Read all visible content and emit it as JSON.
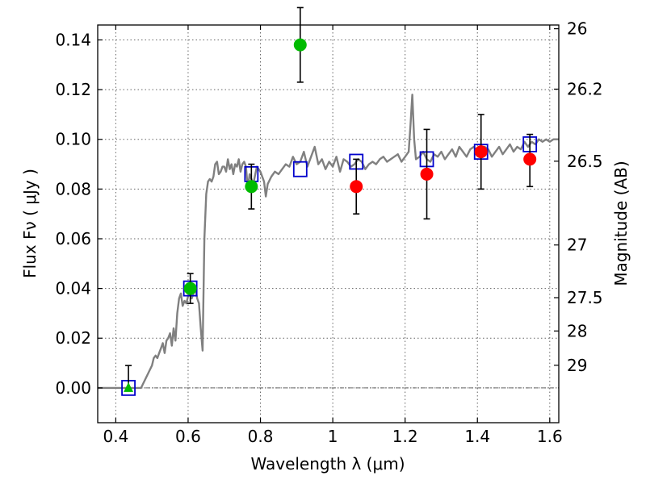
{
  "chart_data": {
    "type": "scatter",
    "xlabel": "Wavelength  λ (μm)",
    "ylabel": "Flux  Fν  ( μJy )",
    "y2label": "Magnitude (AB)",
    "xlim": [
      0.35,
      1.625
    ],
    "ylim": [
      -0.014,
      0.146
    ],
    "grid": true,
    "x_ticks": [
      0.4,
      0.6,
      0.8,
      1.0,
      1.2,
      1.4,
      1.6
    ],
    "x_tick_labels": [
      "0.4",
      "0.6",
      "0.8",
      "1",
      "1.2",
      "1.4",
      "1.6"
    ],
    "y_ticks": [
      0.0,
      0.02,
      0.04,
      0.06,
      0.08,
      0.1,
      0.12,
      0.14
    ],
    "y_tick_labels": [
      "0.00",
      "0.02",
      "0.04",
      "0.06",
      "0.08",
      "0.10",
      "0.12",
      "0.14"
    ],
    "y2_ticks": [
      {
        "label": "26",
        "flux": 0.1445
      },
      {
        "label": "26.2",
        "flux": 0.1202
      },
      {
        "label": "26.5",
        "flux": 0.0912
      },
      {
        "label": "27",
        "flux": 0.0575
      },
      {
        "label": "27.5",
        "flux": 0.0363
      },
      {
        "label": "28",
        "flux": 0.0229
      },
      {
        "label": "29",
        "flux": 0.0091
      }
    ],
    "series": [
      {
        "kind": "line",
        "color": "#808080",
        "x": [
          0.35,
          0.47,
          0.48,
          0.49,
          0.5,
          0.505,
          0.51,
          0.515,
          0.52,
          0.525,
          0.53,
          0.535,
          0.54,
          0.545,
          0.55,
          0.555,
          0.56,
          0.565,
          0.57,
          0.575,
          0.58,
          0.585,
          0.59,
          0.595,
          0.6,
          0.605,
          0.61,
          0.615,
          0.62,
          0.625,
          0.63,
          0.635,
          0.64,
          0.645,
          0.65,
          0.655,
          0.66,
          0.665,
          0.67,
          0.675,
          0.68,
          0.685,
          0.69,
          0.695,
          0.7,
          0.705,
          0.71,
          0.715,
          0.72,
          0.725,
          0.73,
          0.735,
          0.74,
          0.745,
          0.75,
          0.755,
          0.76,
          0.765,
          0.77,
          0.78,
          0.79,
          0.8,
          0.81,
          0.815,
          0.82,
          0.83,
          0.84,
          0.85,
          0.86,
          0.87,
          0.88,
          0.89,
          0.9,
          0.91,
          0.92,
          0.93,
          0.94,
          0.95,
          0.96,
          0.97,
          0.98,
          0.99,
          1.0,
          1.01,
          1.02,
          1.03,
          1.04,
          1.05,
          1.06,
          1.07,
          1.08,
          1.09,
          1.1,
          1.11,
          1.12,
          1.13,
          1.14,
          1.15,
          1.16,
          1.17,
          1.18,
          1.19,
          1.2,
          1.21,
          1.215,
          1.22,
          1.225,
          1.23,
          1.24,
          1.25,
          1.26,
          1.27,
          1.28,
          1.29,
          1.3,
          1.31,
          1.32,
          1.33,
          1.34,
          1.35,
          1.36,
          1.37,
          1.38,
          1.39,
          1.4,
          1.41,
          1.42,
          1.43,
          1.44,
          1.45,
          1.46,
          1.47,
          1.48,
          1.49,
          1.5,
          1.51,
          1.52,
          1.53,
          1.54,
          1.55,
          1.56,
          1.57,
          1.58,
          1.59,
          1.6,
          1.61,
          1.625
        ],
        "y": [
          0.0,
          0.0,
          0.003,
          0.006,
          0.009,
          0.012,
          0.013,
          0.012,
          0.014,
          0.016,
          0.018,
          0.014,
          0.019,
          0.02,
          0.022,
          0.017,
          0.024,
          0.019,
          0.03,
          0.036,
          0.038,
          0.033,
          0.035,
          0.034,
          0.037,
          0.039,
          0.036,
          0.038,
          0.04,
          0.036,
          0.034,
          0.024,
          0.015,
          0.06,
          0.078,
          0.083,
          0.084,
          0.083,
          0.085,
          0.09,
          0.091,
          0.086,
          0.087,
          0.089,
          0.089,
          0.087,
          0.092,
          0.088,
          0.09,
          0.086,
          0.09,
          0.089,
          0.092,
          0.087,
          0.09,
          0.091,
          0.089,
          0.08,
          0.086,
          0.082,
          0.089,
          0.087,
          0.083,
          0.077,
          0.082,
          0.085,
          0.087,
          0.086,
          0.088,
          0.09,
          0.089,
          0.093,
          0.09,
          0.091,
          0.095,
          0.089,
          0.093,
          0.097,
          0.09,
          0.092,
          0.088,
          0.091,
          0.089,
          0.093,
          0.087,
          0.092,
          0.091,
          0.089,
          0.09,
          0.092,
          0.091,
          0.088,
          0.09,
          0.091,
          0.09,
          0.092,
          0.093,
          0.091,
          0.092,
          0.093,
          0.094,
          0.091,
          0.093,
          0.095,
          0.106,
          0.118,
          0.1,
          0.092,
          0.093,
          0.095,
          0.092,
          0.091,
          0.094,
          0.093,
          0.095,
          0.092,
          0.094,
          0.096,
          0.093,
          0.097,
          0.095,
          0.093,
          0.096,
          0.097,
          0.095,
          0.094,
          0.097,
          0.096,
          0.093,
          0.095,
          0.097,
          0.094,
          0.096,
          0.098,
          0.095,
          0.097,
          0.096,
          0.099,
          0.097,
          0.099,
          0.098,
          0.1,
          0.099,
          0.1,
          0.099,
          0.1,
          0.1
        ]
      },
      {
        "kind": "open-square",
        "color": "#0000cc",
        "x": [
          0.435,
          0.606,
          0.775,
          0.91,
          1.065,
          1.26,
          1.41,
          1.545
        ],
        "y": [
          0.0,
          0.04,
          0.086,
          0.088,
          0.091,
          0.092,
          0.095,
          0.098
        ]
      },
      {
        "kind": "filled-circle",
        "color": "#00bb00",
        "x": [
          0.606,
          0.775,
          0.91
        ],
        "y": [
          0.04,
          0.081,
          0.138
        ],
        "err_low": [
          0.006,
          0.009,
          0.015
        ],
        "err_high": [
          0.006,
          0.009,
          0.015
        ]
      },
      {
        "kind": "filled-triangle",
        "color": "#00bb00",
        "x": [
          0.435
        ],
        "y": [
          0.0
        ],
        "err_low": [
          0.0
        ],
        "err_high": [
          0.009
        ]
      },
      {
        "kind": "filled-circle",
        "color": "#ff0000",
        "x": [
          1.065,
          1.26,
          1.41,
          1.545
        ],
        "y": [
          0.081,
          0.086,
          0.095,
          0.092
        ],
        "err_low": [
          0.011,
          0.018,
          0.015,
          0.011
        ],
        "err_high": [
          0.011,
          0.018,
          0.015,
          0.01
        ]
      }
    ]
  }
}
